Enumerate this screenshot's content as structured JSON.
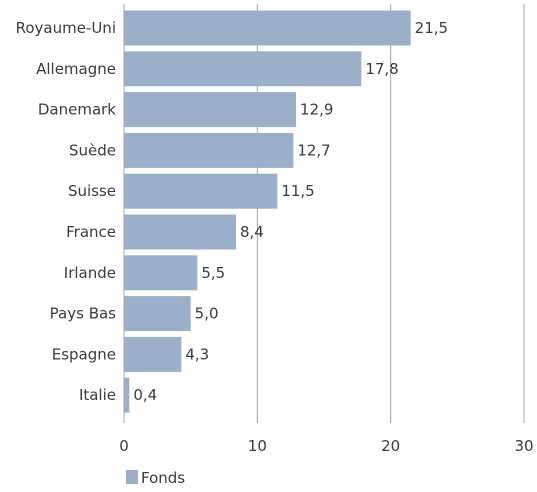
{
  "chart_data": {
    "type": "bar",
    "orientation": "horizontal",
    "categories": [
      "Royaume-Uni",
      "Allemagne",
      "Danemark",
      "Suède",
      "Suisse",
      "France",
      "Irlande",
      "Pays Bas",
      "Espagne",
      "Italie"
    ],
    "series": [
      {
        "name": "Fonds",
        "values": [
          21.5,
          17.8,
          12.9,
          12.7,
          11.5,
          8.4,
          5.5,
          5.0,
          4.3,
          0.4
        ],
        "value_labels": [
          "21,5",
          "17,8",
          "12,9",
          "12,7",
          "11,5",
          "8,4",
          "5,5",
          "5,0",
          "4,3",
          "0,4"
        ]
      }
    ],
    "xlim": [
      0,
      30
    ],
    "xticks": [
      0,
      10,
      20,
      30
    ],
    "xtick_labels": [
      "0",
      "10",
      "20",
      "30"
    ],
    "grid": "vertical",
    "legend_position": "bottom-left",
    "colors": {
      "bar": "#9bb0c8",
      "bar_edge": "#8aa1bc",
      "grid": "#a8a8a8",
      "text": "#3c3c3c"
    }
  }
}
